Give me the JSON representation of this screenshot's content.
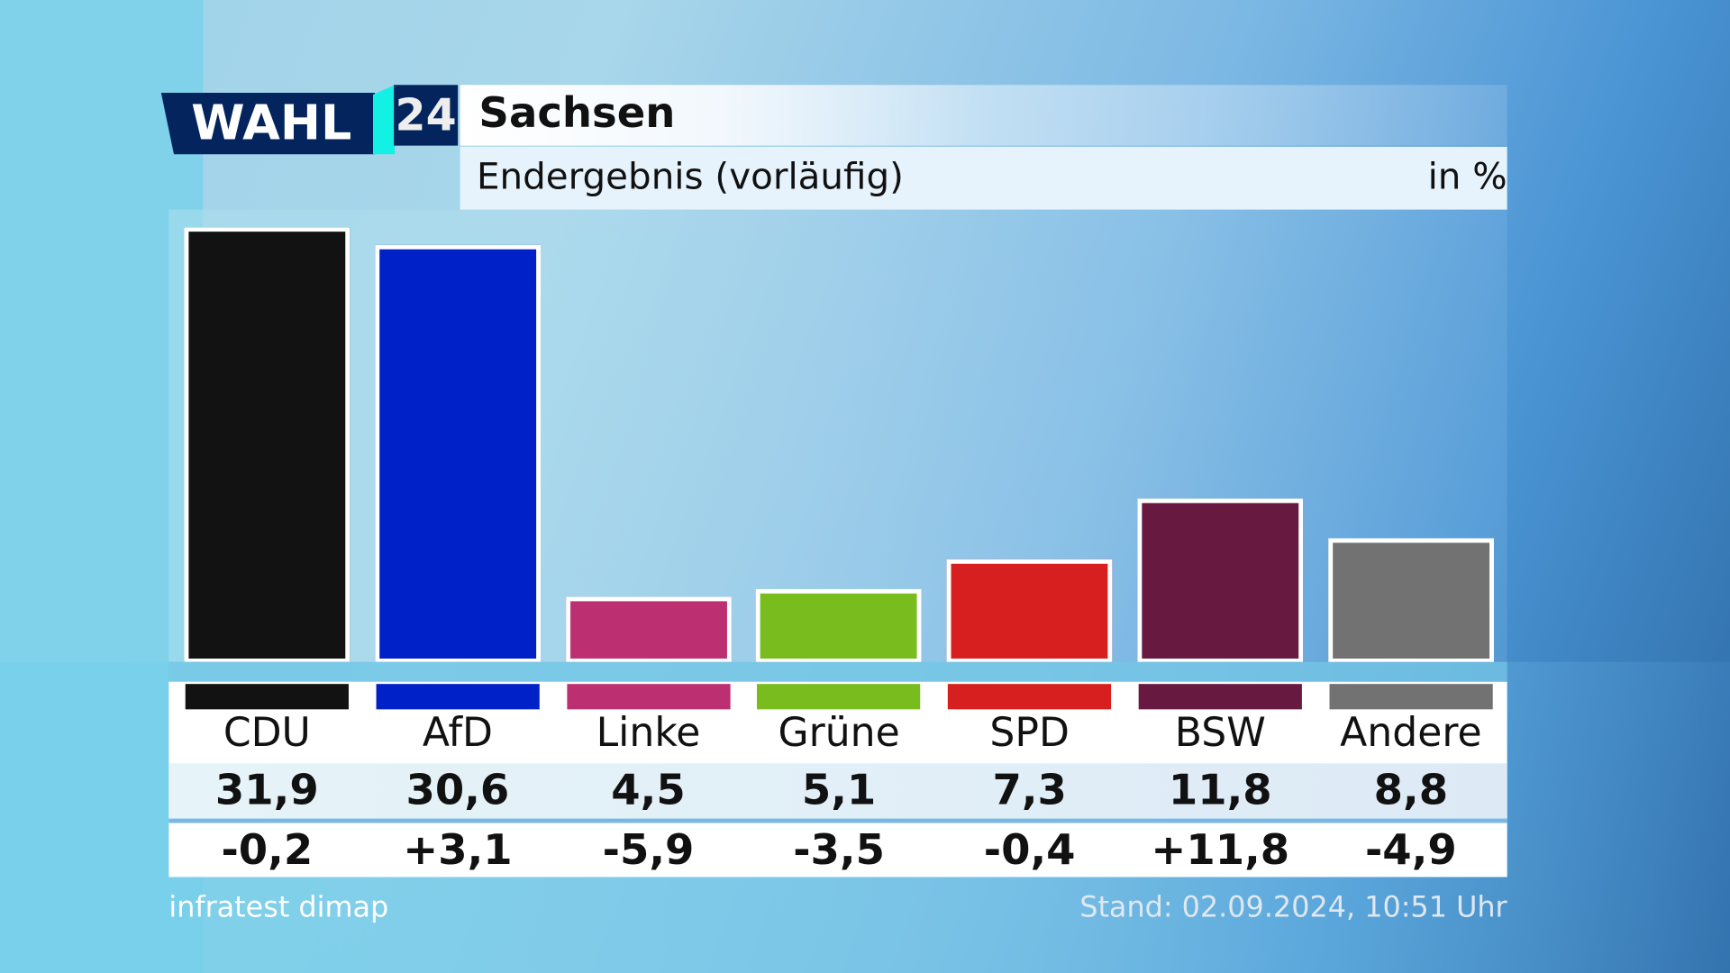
{
  "logo": {
    "text1": "WAHL",
    "text2": "24"
  },
  "header": {
    "title": "Sachsen",
    "subtitle": "Endergebnis (vorläufig)",
    "unit": "in %"
  },
  "chart_data": {
    "type": "bar",
    "title": "Sachsen",
    "subtitle": "Endergebnis (vorläufig)",
    "unit": "in %",
    "ylim": [
      0,
      32
    ],
    "grid": false,
    "categories": [
      "CDU",
      "AfD",
      "Linke",
      "Grüne",
      "SPD",
      "BSW",
      "Andere"
    ],
    "values": [
      31.9,
      30.6,
      4.5,
      5.1,
      7.3,
      11.8,
      8.8
    ],
    "value_labels": [
      "31,9",
      "30,6",
      "4,5",
      "5,1",
      "7,3",
      "11,8",
      "8,8"
    ],
    "change_labels": [
      "-0,2",
      "+3,1",
      "-5,9",
      "-3,5",
      "-0,4",
      "+11,8",
      "-4,9"
    ],
    "changes": [
      -0.2,
      3.1,
      -5.9,
      -3.5,
      -0.4,
      11.8,
      -4.9
    ],
    "colors": [
      "#121212",
      "#0020c8",
      "#bc3072",
      "#78bc1e",
      "#d81f20",
      "#671940",
      "#727272"
    ]
  },
  "footer": {
    "source": "infratest dimap",
    "stand": "Stand:  02.09.2024, 10:51 Uhr"
  }
}
